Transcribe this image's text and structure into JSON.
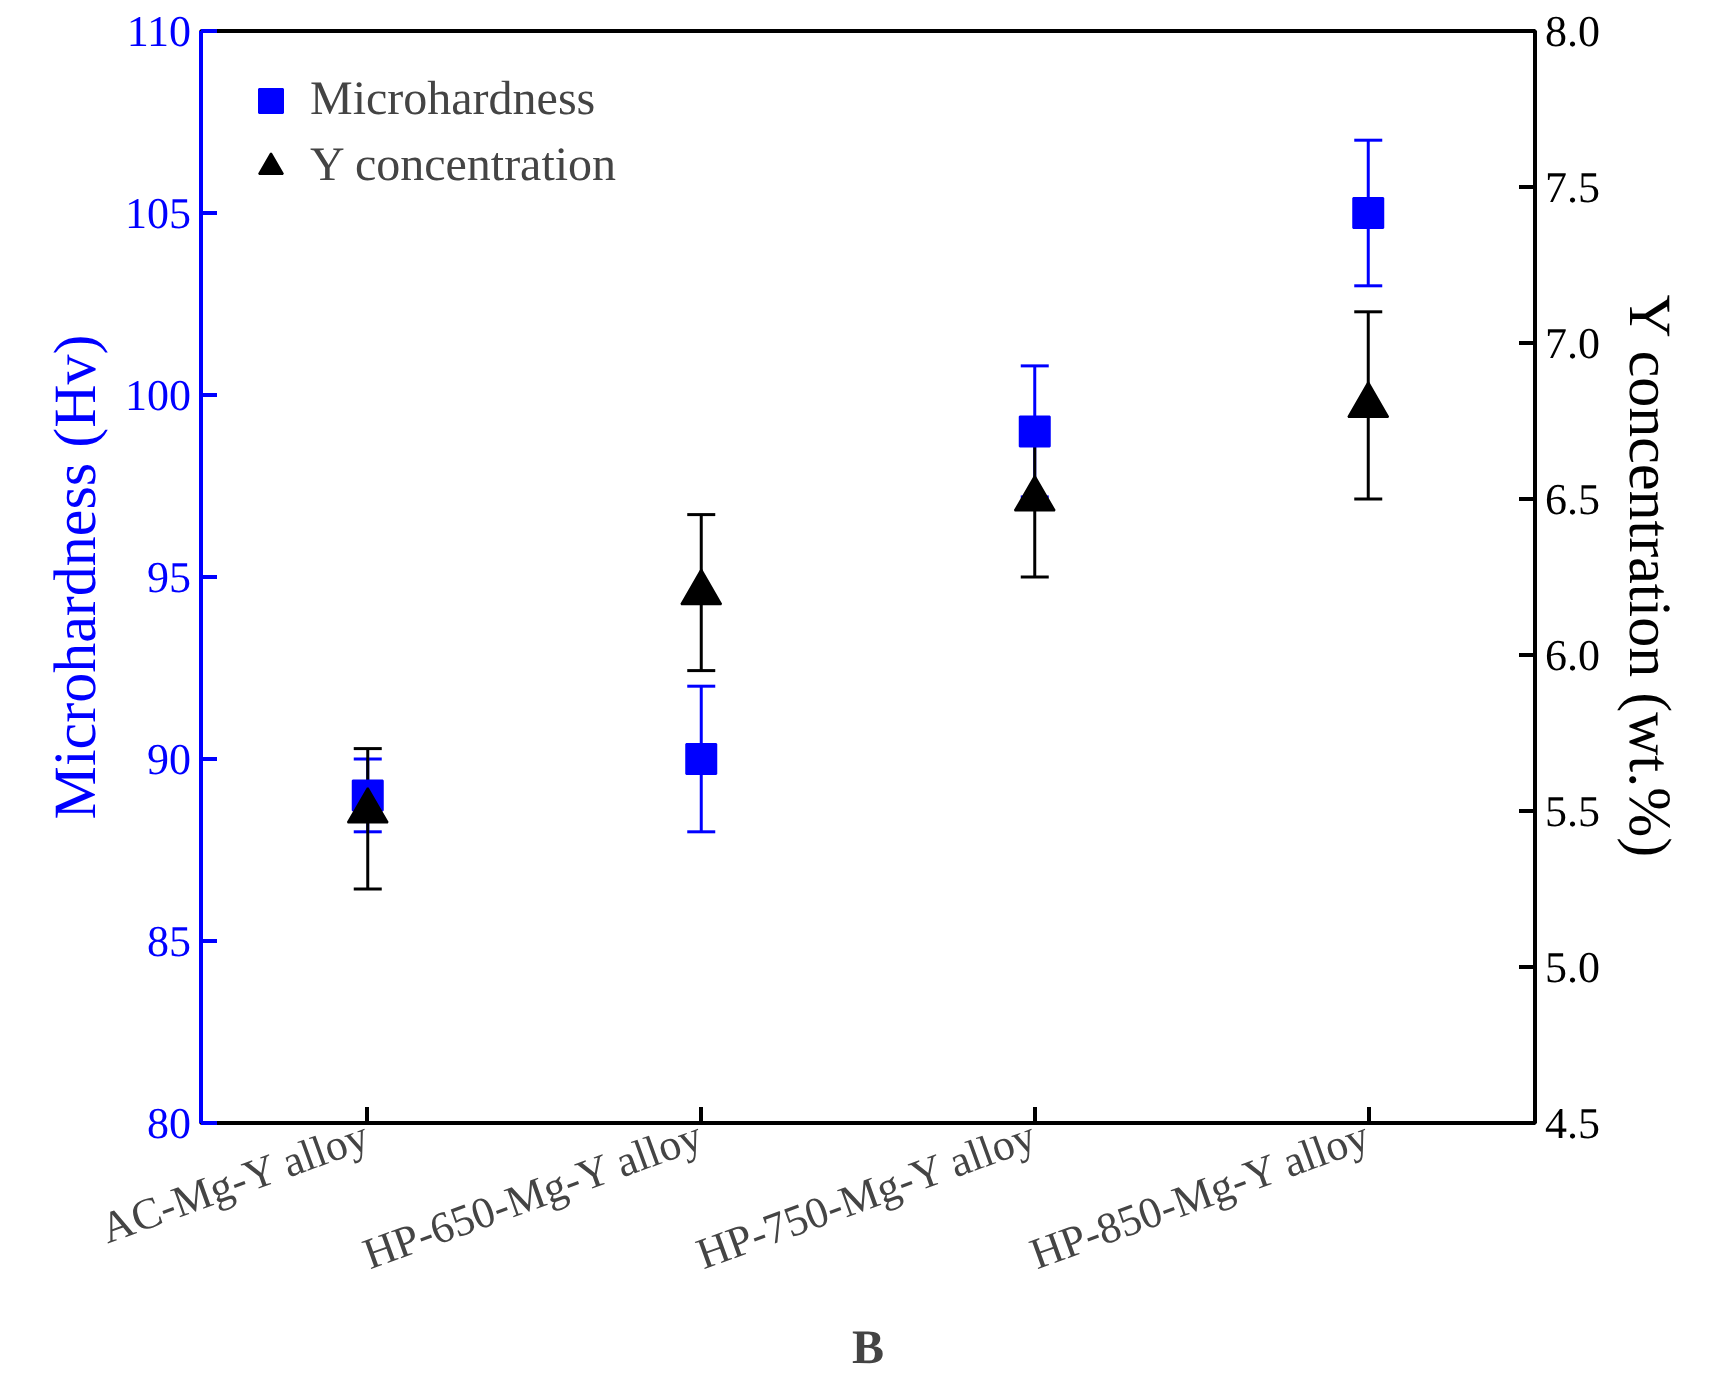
{
  "chart_data": {
    "type": "scatter",
    "categories": [
      "AC-Mg-Y alloy",
      "HP-650-Mg-Y alloy",
      "HP-750-Mg-Y alloy",
      "HP-850-Mg-Y alloy"
    ],
    "series": [
      {
        "name": "Microhardness",
        "color": "#0000ff",
        "marker": "square",
        "values": [
          89,
          90,
          99,
          105
        ],
        "errors": [
          1,
          2,
          1.8,
          2
        ]
      },
      {
        "name": "Y concentration",
        "color": "#000000",
        "marker": "triangle",
        "axis": "y2",
        "values": [
          5.5,
          6.2,
          6.5,
          6.8
        ],
        "errors": [
          [
            5.25,
            5.7
          ],
          [
            5.95,
            6.45
          ],
          0.25,
          0.3
        ]
      }
    ],
    "ylabel": "Microhardness (Hv)",
    "y2label": "Y concentration (wt.%)",
    "ylim": [
      80,
      110
    ],
    "yticks": [
      80,
      85,
      90,
      95,
      100,
      105,
      110
    ],
    "y2lim": [
      4.5,
      8.0
    ],
    "y2ticks": [
      {
        "value": 4.5,
        "label": "4.5"
      },
      {
        "value": 5.0,
        "label": "5.0"
      },
      {
        "value": 5.5,
        "label": "5.5"
      },
      {
        "value": 6.0,
        "label": "6.0"
      },
      {
        "value": 6.5,
        "label": "6.5"
      },
      {
        "value": 7.0,
        "label": "7.0"
      },
      {
        "value": 7.5,
        "label": "7.5"
      },
      {
        "value": 8.0,
        "label": "8.0"
      }
    ],
    "legend": "top left",
    "grid": false,
    "annotations": [
      "B"
    ]
  }
}
